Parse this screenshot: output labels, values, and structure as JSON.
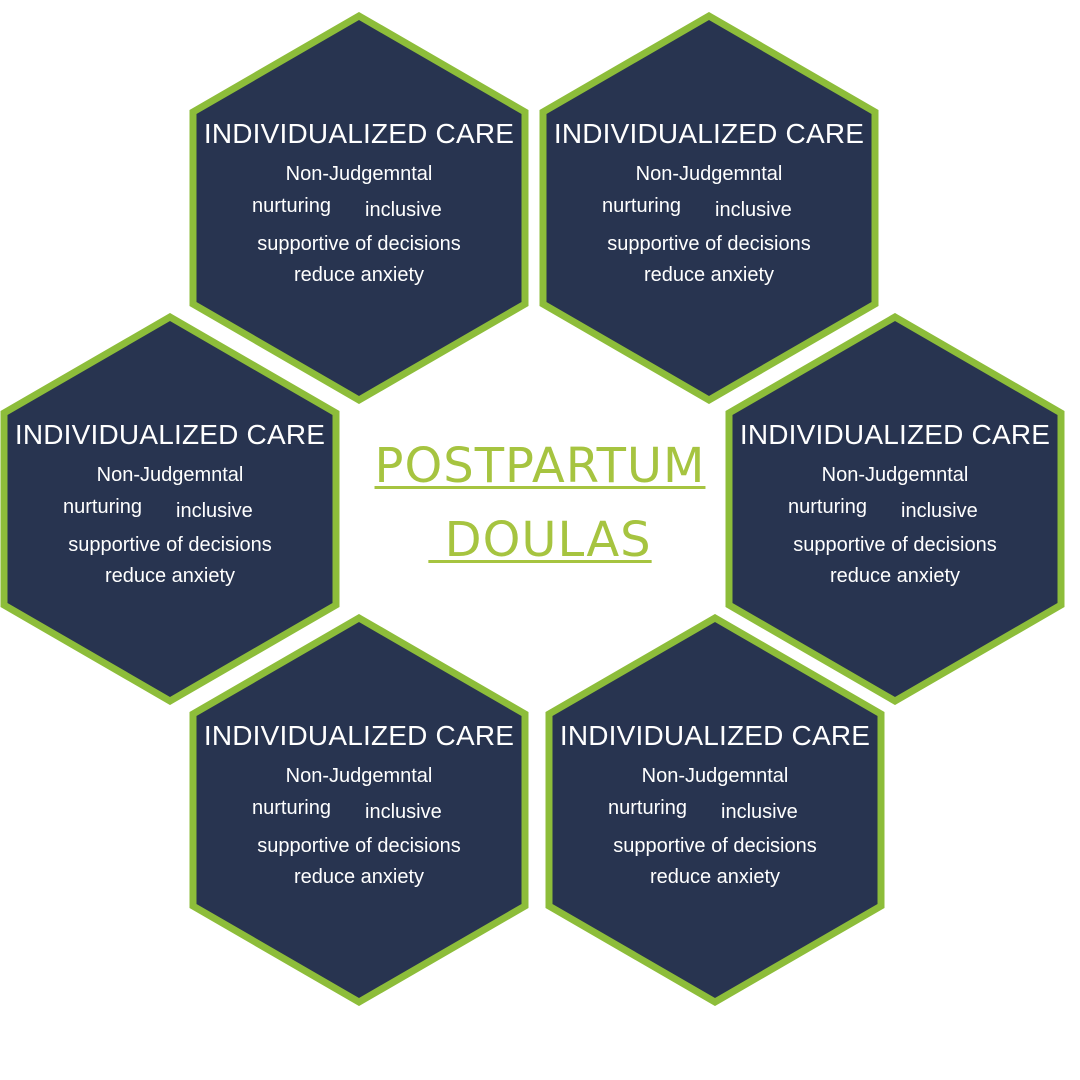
{
  "center": {
    "line1": "POSTPARTUM",
    "line2": " DOULAS"
  },
  "colors": {
    "hex_fill": "#283450",
    "hex_border": "#8dbd3a",
    "title_text": "#a6c440",
    "hex_text": "#ffffff"
  },
  "hexagons": [
    {
      "title": "INDIVIDUALIZED CARE",
      "line1": "Non-Judgemntal",
      "word_a": "nurturing",
      "word_b": "inclusive",
      "line3": "supportive of decisions",
      "line4": "reduce anxiety"
    },
    {
      "title": "INDIVIDUALIZED CARE",
      "line1": "Non-Judgemntal",
      "word_a": "nurturing",
      "word_b": "inclusive",
      "line3": "supportive of decisions",
      "line4": "reduce anxiety"
    },
    {
      "title": "INDIVIDUALIZED CARE",
      "line1": "Non-Judgemntal",
      "word_a": "nurturing",
      "word_b": "inclusive",
      "line3": "supportive of decisions",
      "line4": "reduce anxiety"
    },
    {
      "title": "INDIVIDUALIZED CARE",
      "line1": "Non-Judgemntal",
      "word_a": "nurturing",
      "word_b": "inclusive",
      "line3": "supportive of decisions",
      "line4": "reduce anxiety"
    },
    {
      "title": "INDIVIDUALIZED CARE",
      "line1": "Non-Judgemntal",
      "word_a": "nurturing",
      "word_b": "inclusive",
      "line3": "supportive of decisions",
      "line4": "reduce anxiety"
    },
    {
      "title": "INDIVIDUALIZED CARE",
      "line1": "Non-Judgemntal",
      "word_a": "nurturing",
      "word_b": "inclusive",
      "line3": "supportive of decisions",
      "line4": "reduce anxiety"
    }
  ]
}
